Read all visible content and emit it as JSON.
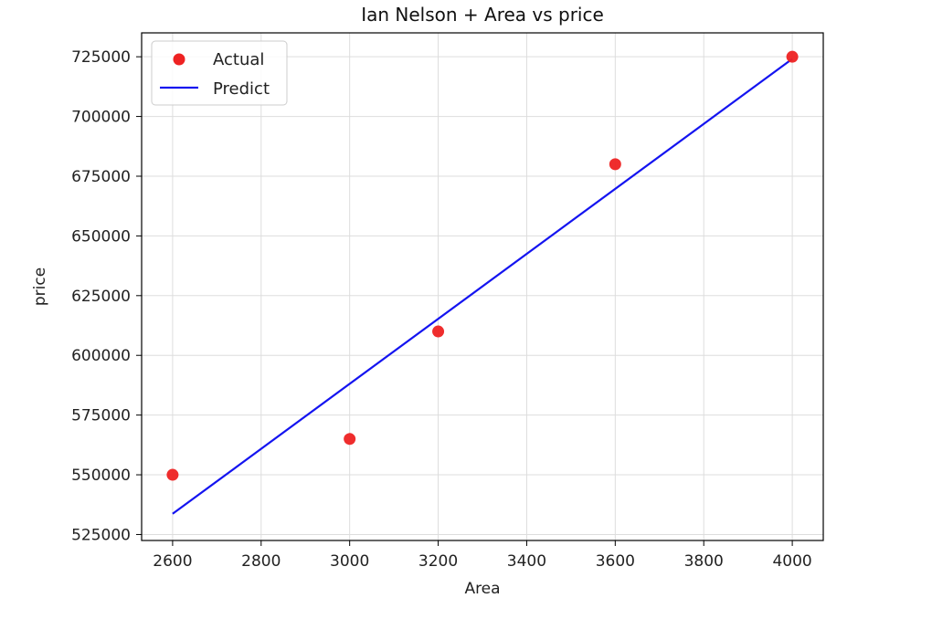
{
  "chart_data": {
    "type": "scatter",
    "title": "Ian Nelson + Area vs price",
    "xlabel": "Area",
    "ylabel": "price",
    "xlim": [
      2530,
      4070
    ],
    "ylim": [
      522500,
      735000
    ],
    "xticks": [
      2600,
      2800,
      3000,
      3200,
      3400,
      3600,
      3800,
      4000
    ],
    "yticks": [
      525000,
      550000,
      575000,
      600000,
      625000,
      650000,
      675000,
      700000,
      725000
    ],
    "grid": true,
    "legend_position": "top-left",
    "series": [
      {
        "name": "Actual",
        "kind": "scatter",
        "color": "#ee2222",
        "x": [
          2600,
          3000,
          3200,
          3600,
          4000
        ],
        "y": [
          550000,
          565000,
          610000,
          680000,
          725000
        ]
      },
      {
        "name": "Predict",
        "kind": "line",
        "color": "#1414f0",
        "x": [
          2600,
          4000
        ],
        "y": [
          533664,
          724109
        ]
      }
    ]
  }
}
